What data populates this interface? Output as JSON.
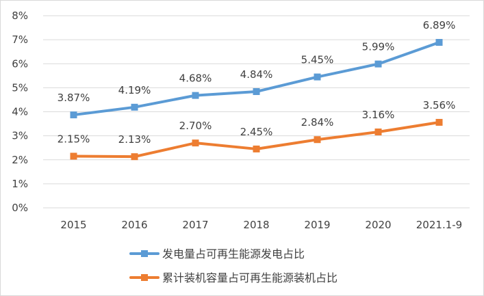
{
  "chart_data": {
    "type": "line",
    "title": "",
    "xlabel": "",
    "ylabel": "",
    "categories": [
      "2015",
      "2016",
      "2017",
      "2018",
      "2019",
      "2020",
      "2021.1-9"
    ],
    "y_ticks": [
      "0%",
      "1%",
      "2%",
      "3%",
      "4%",
      "5%",
      "6%",
      "7%",
      "8%"
    ],
    "ylim": [
      0,
      8
    ],
    "grid": true,
    "legend_position": "bottom-left",
    "series": [
      {
        "name": "发电量占可再生能源发电占比",
        "values": [
          3.87,
          4.19,
          4.68,
          4.84,
          5.45,
          5.99,
          6.89
        ],
        "labels": [
          "3.87%",
          "4.19%",
          "4.68%",
          "4.84%",
          "5.45%",
          "5.99%",
          "6.89%"
        ],
        "color": "#5b9bd5"
      },
      {
        "name": "累计装机容量占可再生能源装机占比",
        "values": [
          2.15,
          2.13,
          2.7,
          2.45,
          2.84,
          3.16,
          3.56
        ],
        "labels": [
          "2.15%",
          "2.13%",
          "2.70%",
          "2.45%",
          "2.84%",
          "3.16%",
          "3.56%"
        ],
        "color": "#ed7d31"
      }
    ]
  }
}
